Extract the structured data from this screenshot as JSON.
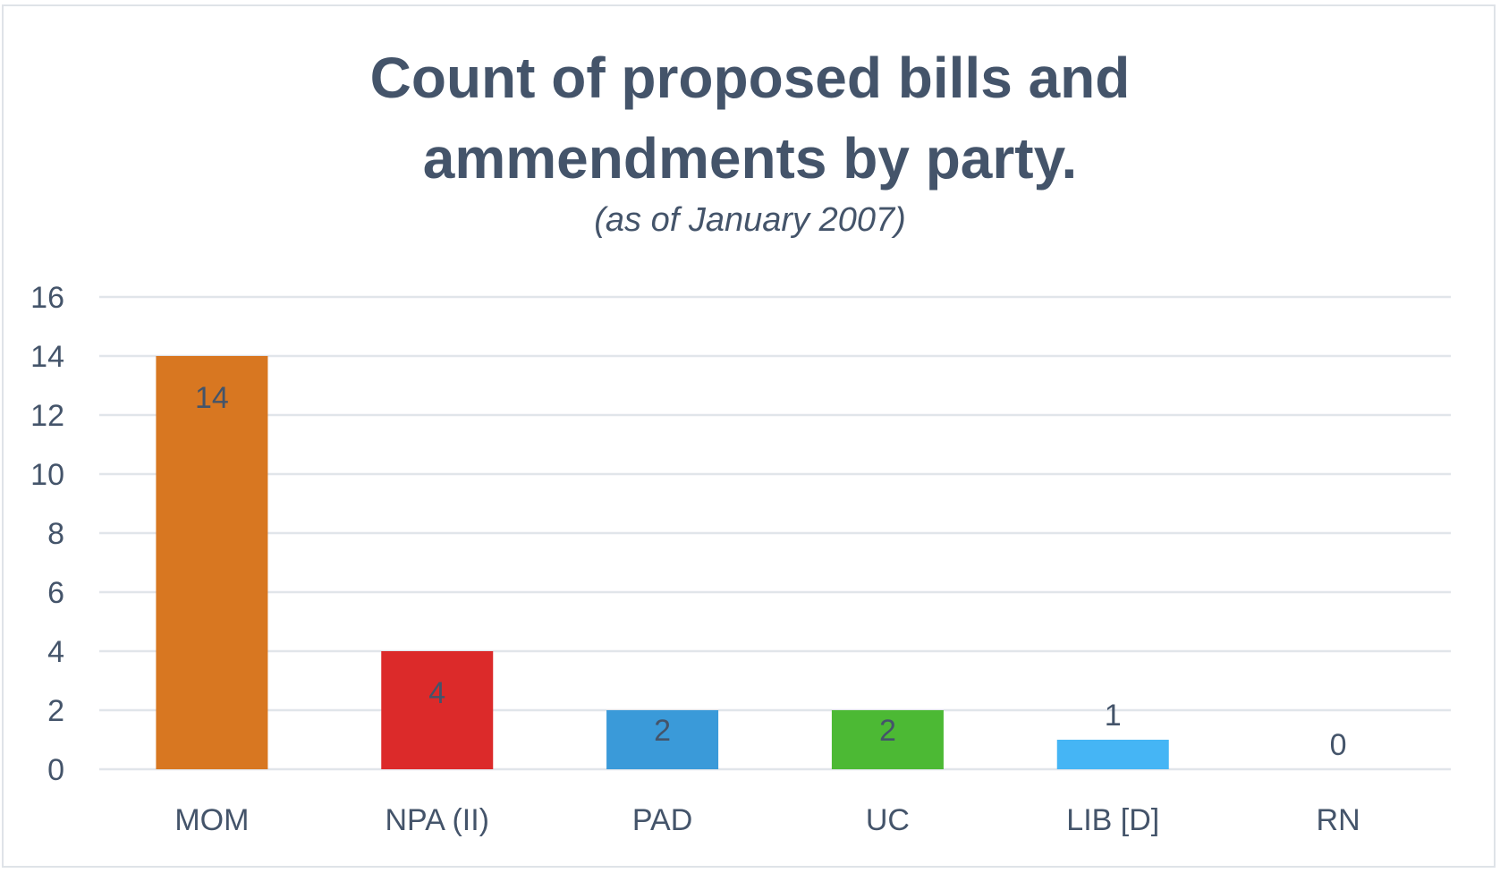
{
  "chart_data": {
    "type": "bar",
    "title_line1": "Count of proposed bills and",
    "title_line2": "ammendments by party.",
    "subtitle": "(as of January 2007)",
    "xlabel": "",
    "ylabel": "",
    "categories": [
      "MOM",
      "NPA (II)",
      "PAD",
      "UC",
      "LIB [D]",
      "RN"
    ],
    "values": [
      14,
      4,
      2,
      2,
      1,
      0
    ],
    "colors": [
      "#d87721",
      "#dc2a2a",
      "#3a9ad9",
      "#4cb934",
      "#45b5f5",
      "#888888"
    ],
    "ylim": [
      0,
      16
    ],
    "yticks": [
      0,
      2,
      4,
      6,
      8,
      10,
      12,
      14,
      16
    ],
    "grid": true,
    "legend": "none"
  }
}
